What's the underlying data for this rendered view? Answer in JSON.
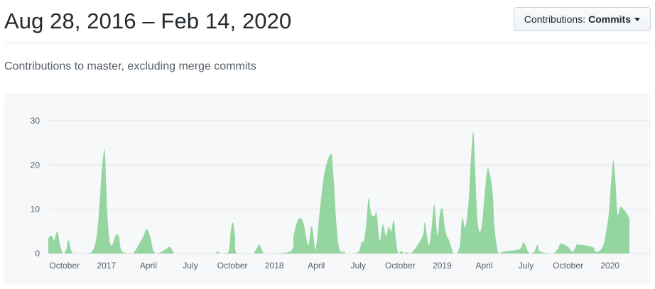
{
  "header": {
    "range_title": "Aug 28, 2016 – Feb 14, 2020",
    "select_label": "Contributions:",
    "select_value": "Commits"
  },
  "subtitle": "Contributions to master, excluding merge commits",
  "colors": {
    "area": "#95d5a0",
    "grid": "#e1e4e8",
    "text": "#586069"
  },
  "chart_data": {
    "type": "area",
    "title": "",
    "xlabel": "",
    "ylabel": "",
    "ylim": [
      0,
      30
    ],
    "yticks": [
      0,
      10,
      20,
      30
    ],
    "xlim": [
      0,
      180
    ],
    "x_unit": "weeks since Aug 28, 2016",
    "xticks": [
      {
        "x": 5,
        "label": "October"
      },
      {
        "x": 18,
        "label": "2017"
      },
      {
        "x": 31,
        "label": "April"
      },
      {
        "x": 44,
        "label": "July"
      },
      {
        "x": 57,
        "label": "October"
      },
      {
        "x": 70,
        "label": "2018"
      },
      {
        "x": 83,
        "label": "April"
      },
      {
        "x": 96,
        "label": "July"
      },
      {
        "x": 109,
        "label": "October"
      },
      {
        "x": 122,
        "label": "2019"
      },
      {
        "x": 135,
        "label": "April"
      },
      {
        "x": 148,
        "label": "July"
      },
      {
        "x": 161,
        "label": "October"
      },
      {
        "x": 174,
        "label": "2020"
      }
    ],
    "series": [
      {
        "name": "Commits",
        "x": [
          0,
          1,
          1.8,
          2.8,
          3.6,
          4.6,
          5.6,
          6.2,
          7.2,
          8.2,
          12,
          14,
          15.3,
          16.5,
          17.2,
          17.6,
          18.2,
          19,
          19.8,
          20.8,
          21.8,
          22.8,
          26,
          28,
          29.5,
          30.4,
          31.5,
          32.4,
          33.2,
          34,
          36.5,
          37.6,
          38.8,
          39.6,
          51,
          52,
          52.8,
          53.5,
          55.8,
          56.5,
          57.2,
          57.8,
          58.4,
          63,
          64,
          64.8,
          65.4,
          66.4,
          67.4,
          75,
          76,
          77,
          78,
          79,
          79.8,
          80.6,
          81.4,
          82,
          82.8,
          84,
          85.5,
          87.5,
          88.2,
          89.2,
          90,
          91,
          91.6,
          92.2,
          93,
          96,
          97,
          97.8,
          98.6,
          99.2,
          100,
          101,
          101.7,
          102.6,
          103.4,
          103.8,
          104.6,
          105.4,
          106.2,
          107,
          107.7,
          108.4,
          109.4,
          110.2,
          111,
          112,
          113,
          116,
          116.6,
          117.8,
          118.6,
          119.5,
          120,
          120.6,
          121.3,
          122.1,
          122.8,
          123.4,
          124.1,
          125,
          125.5,
          126.5,
          127.5,
          128.2,
          129.2,
          130.2,
          130.8,
          131.6,
          132.1,
          132.8,
          133.5,
          134.3,
          135,
          135.8,
          136.4,
          137.6,
          138.2,
          139.2,
          139.8,
          140.5,
          141.5,
          146,
          147.2,
          148.6,
          149.5,
          150.6,
          151.6,
          152.3,
          156,
          157,
          157.8,
          158.8,
          161,
          162,
          162.6,
          163.4,
          164,
          168.5,
          169.4,
          170.6,
          172,
          172.8,
          173.6,
          174.2,
          175,
          175.6,
          176.3,
          177.2,
          178.2,
          179.2,
          180
        ],
        "values": [
          3.5,
          4,
          3,
          5,
          2,
          0,
          1,
          3,
          0.5,
          0,
          0,
          1,
          6,
          18,
          23,
          22,
          10,
          3,
          2,
          4,
          4,
          0.5,
          0,
          2,
          4,
          5.5,
          4,
          1,
          0,
          0,
          1,
          1.5,
          0.3,
          0,
          0,
          0.5,
          0.3,
          0,
          0.3,
          5,
          7,
          4,
          0,
          0,
          0.5,
          1.5,
          2,
          0.5,
          0,
          0.5,
          4,
          7,
          8,
          7,
          4,
          2,
          6,
          5,
          1,
          9,
          18,
          22.5,
          19,
          7,
          1.5,
          0.3,
          0.5,
          0,
          0,
          0.3,
          2.5,
          3,
          7.5,
          12.5,
          9,
          8.5,
          9,
          3,
          6,
          6.5,
          4,
          6,
          5,
          7.5,
          3,
          0,
          0.5,
          0,
          0.3,
          0,
          0.5,
          4,
          7,
          2,
          5,
          11,
          8,
          4,
          9,
          10,
          6,
          4,
          3,
          1,
          0,
          0,
          2,
          8,
          6,
          12,
          20,
          27.5,
          21,
          9,
          5,
          6.5,
          12,
          18,
          19,
          14,
          6,
          0.5,
          0,
          0.3,
          0.5,
          1,
          2.5,
          0.5,
          0,
          0.5,
          2,
          0.5,
          0,
          0.3,
          1,
          2.2,
          1.5,
          0.5,
          0.5,
          1.5,
          2,
          1.5,
          0.5,
          0.5,
          2,
          5,
          9,
          15,
          21,
          17,
          9,
          10.5,
          10,
          9,
          8
        ]
      }
    ]
  }
}
